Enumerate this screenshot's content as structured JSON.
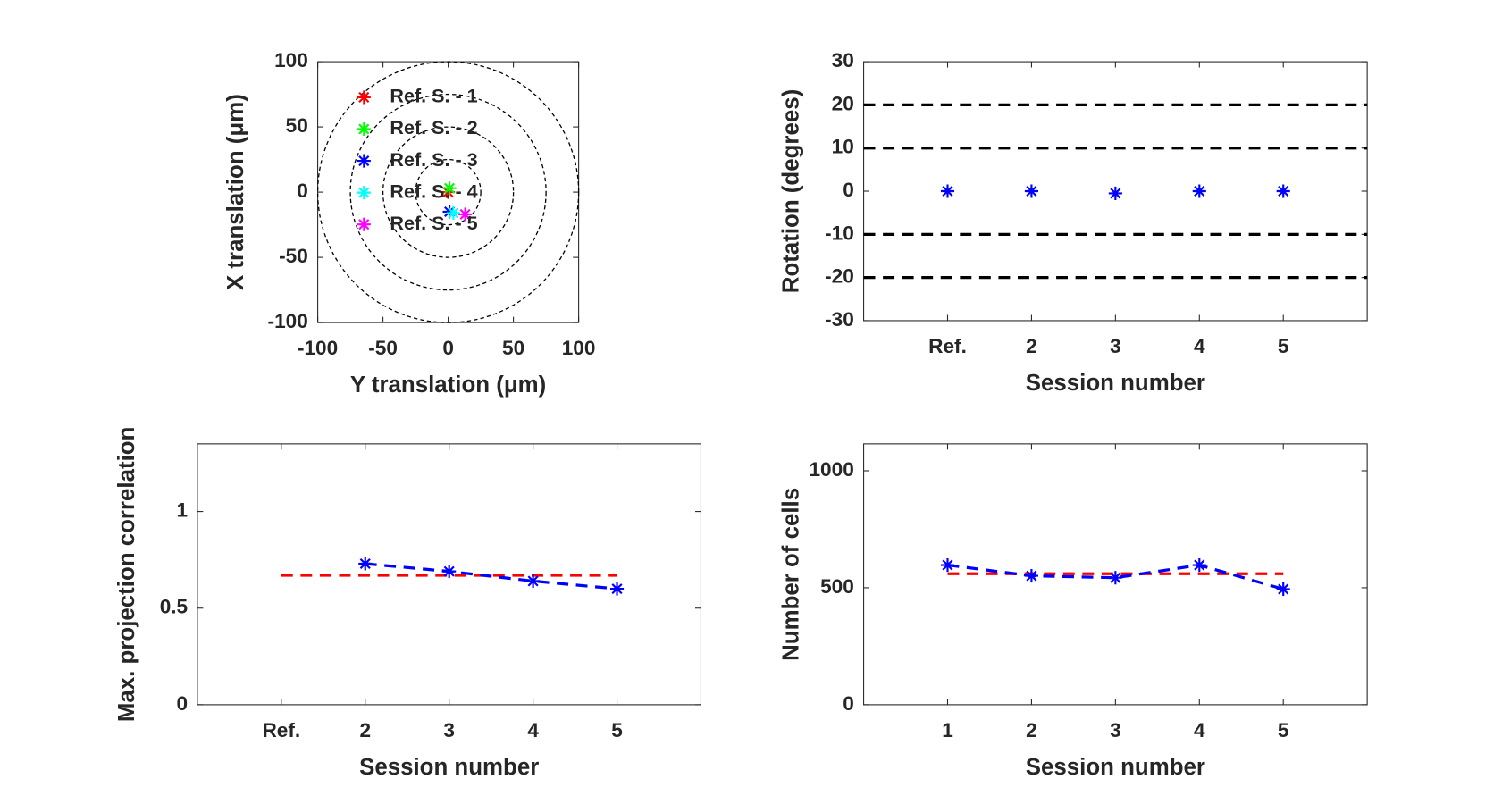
{
  "chart_data": [
    {
      "type": "scatter",
      "xlabel": "Y translation (μm)",
      "ylabel": "X translation (μm)",
      "xlim": [
        -100,
        100
      ],
      "ylim": [
        -100,
        100
      ],
      "xticks": [
        -100,
        -50,
        0,
        50,
        100
      ],
      "yticks": [
        -100,
        -50,
        0,
        50,
        100
      ],
      "circles": [
        25,
        50,
        75,
        100
      ],
      "legend": "northwest",
      "series": [
        {
          "name": "Ref. S. - 1",
          "color": "#ff0000",
          "marker": "*",
          "linestyle": "none",
          "x": [
            0
          ],
          "values": [
            0
          ]
        },
        {
          "name": "Ref. S. - 2",
          "color": "#00ff00",
          "marker": "*",
          "linestyle": "none",
          "x": [
            1
          ],
          "values": [
            3
          ]
        },
        {
          "name": "Ref. S. - 3",
          "color": "#0000ff",
          "marker": "*",
          "linestyle": "none",
          "x": [
            1
          ],
          "values": [
            -15
          ]
        },
        {
          "name": "Ref. S. - 4",
          "color": "#00ffff",
          "marker": "*",
          "linestyle": "none",
          "x": [
            4
          ],
          "values": [
            -16
          ]
        },
        {
          "name": "Ref. S. - 5",
          "color": "#ff00ff",
          "marker": "*",
          "linestyle": "none",
          "x": [
            13
          ],
          "values": [
            -17
          ]
        }
      ]
    },
    {
      "type": "scatter",
      "xlabel": "Session number",
      "ylabel": "Rotation (degrees)",
      "xlim": [
        0,
        6
      ],
      "ylim": [
        -30,
        30
      ],
      "xticks": [
        {
          "value": 1,
          "label": "Ref."
        },
        2,
        3,
        4,
        5
      ],
      "yticks": [
        -30,
        -20,
        -10,
        0,
        10,
        20,
        30
      ],
      "hlines": [
        20,
        10,
        -10,
        -20
      ],
      "series": [
        {
          "color": "#0000ff",
          "marker": "*",
          "linestyle": "none",
          "x": [
            1,
            2,
            3,
            4,
            5
          ],
          "values": [
            0,
            0,
            -0.5,
            0,
            0
          ]
        }
      ]
    },
    {
      "type": "line",
      "xlabel": "Session number",
      "ylabel": "Max. projection correlation",
      "xlim": [
        0,
        6
      ],
      "ylim": [
        0,
        1.35
      ],
      "xticks": [
        {
          "value": 1,
          "label": "Ref."
        },
        2,
        3,
        4,
        5
      ],
      "yticks": [
        0,
        0.5,
        1
      ],
      "series": [
        {
          "color": "#ff0000",
          "marker": "none",
          "linestyle": "dashed",
          "x": [
            1,
            5
          ],
          "values": [
            0.67,
            0.67
          ]
        },
        {
          "color": "#0000ff",
          "marker": "*",
          "linestyle": "dashed",
          "x": [
            1,
            2,
            3,
            4,
            5
          ],
          "values": [
            null,
            0.73,
            0.69,
            0.64,
            0.6
          ]
        }
      ]
    },
    {
      "type": "line",
      "xlabel": "Session number",
      "ylabel": "Number of cells",
      "xlim": [
        0,
        6
      ],
      "ylim": [
        0,
        1115
      ],
      "xticks": [
        1,
        2,
        3,
        4,
        5
      ],
      "yticks": [
        0,
        500,
        1000
      ],
      "series": [
        {
          "color": "#ff0000",
          "marker": "none",
          "linestyle": "dashed",
          "x": [
            1,
            5
          ],
          "values": [
            560,
            560
          ]
        },
        {
          "color": "#0000ff",
          "marker": "*",
          "linestyle": "dashed",
          "x": [
            1,
            2,
            3,
            4,
            5
          ],
          "values": [
            597,
            551,
            543,
            597,
            494
          ]
        }
      ]
    }
  ]
}
